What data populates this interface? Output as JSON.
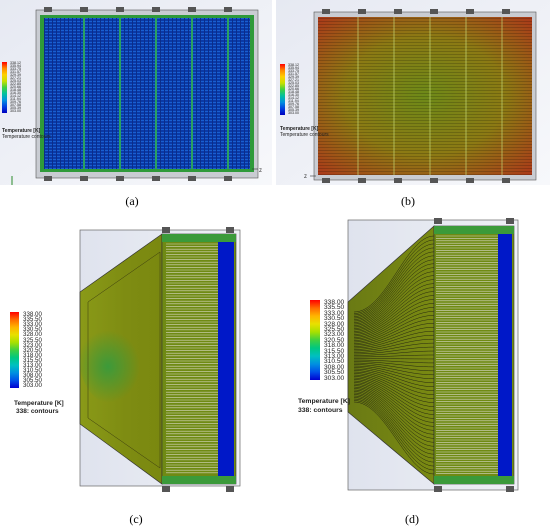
{
  "figure_labels": [
    "(a)",
    "(b)",
    "(c)",
    "(d)"
  ],
  "legends": {
    "a": {
      "title": "Temperature [K]",
      "subtitle": "Temperature contours",
      "ticks": [
        "338.12",
        "335.94",
        "333.75",
        "331.57",
        "329.39",
        "327.21",
        "325.03",
        "322.85",
        "320.66",
        "318.48",
        "316.30",
        "314.12",
        "311.94",
        "309.76",
        "307.58",
        "305.39",
        "303.00"
      ]
    },
    "b": {
      "title": "Temperature [K]",
      "subtitle": "Temperature contours",
      "ticks": [
        "338.12",
        "335.94",
        "333.75",
        "331.57",
        "329.39",
        "327.21",
        "325.03",
        "322.85",
        "320.66",
        "318.48",
        "316.30",
        "314.12",
        "311.94",
        "309.76",
        "307.58",
        "305.39",
        "303.00"
      ]
    },
    "c": {
      "title": "Temperature [K]",
      "subtitle": "338: contours",
      "ticks": [
        "338.00",
        "335.50",
        "333.00",
        "330.50",
        "328.00",
        "325.50",
        "323.00",
        "320.50",
        "318.00",
        "315.50",
        "313.00",
        "310.50",
        "308.00",
        "305.50",
        "303.00"
      ]
    },
    "d": {
      "title": "Temperature [K]",
      "subtitle": "338: contours",
      "ticks": [
        "338.00",
        "335.50",
        "333.00",
        "330.50",
        "328.00",
        "325.50",
        "323.00",
        "320.50",
        "318.00",
        "315.50",
        "313.00",
        "310.50",
        "308.00",
        "305.50",
        "303.00"
      ]
    }
  },
  "axis_triad": {
    "a": "z",
    "b": "z"
  },
  "colors": {
    "rainbow": [
      "#ff0000",
      "#ff6a00",
      "#ffb400",
      "#e8e000",
      "#a8e000",
      "#40d040",
      "#00c880",
      "#00c0c0",
      "#0090e0",
      "#0050e8",
      "#0000d0"
    ]
  }
}
